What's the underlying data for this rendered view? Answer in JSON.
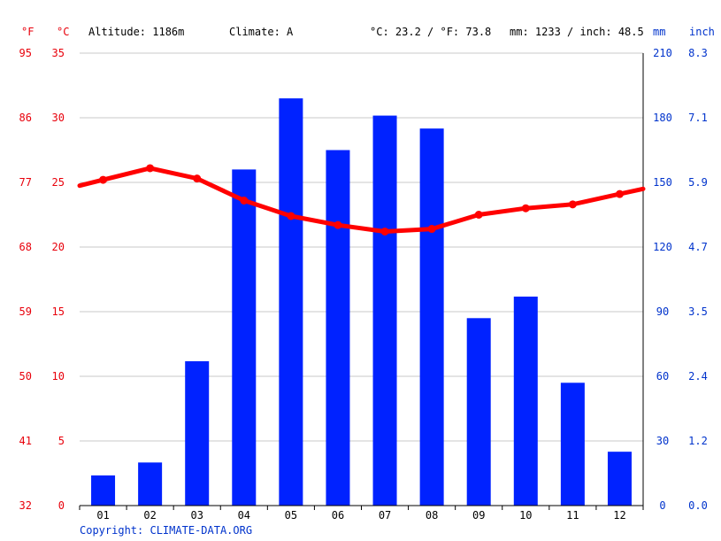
{
  "header": {
    "unit_f": "°F",
    "unit_c": "°C",
    "altitude": "Altitude: 1186m",
    "climate": "Climate: A",
    "temp_summary": "°C: 23.2 / °F: 73.8",
    "precip_summary": "mm: 1233 / inch: 48.5",
    "unit_mm": "mm",
    "unit_inch": "inch"
  },
  "copyright": "Copyright: CLIMATE-DATA.ORG",
  "colors": {
    "temp": "#ff0000",
    "precip": "#0022ff",
    "axis_red": "#e8000b",
    "axis_blue": "#0033cc",
    "grid": "#c8c8c8"
  },
  "chart_data": {
    "type": "bar",
    "categories": [
      "01",
      "02",
      "03",
      "04",
      "05",
      "06",
      "07",
      "08",
      "09",
      "10",
      "11",
      "12"
    ],
    "series": [
      {
        "kind": "bar",
        "axis": "precip_mm",
        "values": [
          14,
          20,
          67,
          156,
          189,
          165,
          181,
          175,
          87,
          97,
          57,
          25
        ]
      },
      {
        "kind": "line",
        "axis": "temp_c",
        "values": [
          25.2,
          26.1,
          25.3,
          23.6,
          22.4,
          21.7,
          21.2,
          21.4,
          22.5,
          23.0,
          23.3,
          24.1
        ]
      }
    ],
    "axes": {
      "temp_c": {
        "range": [
          0,
          35
        ],
        "ticks": [
          "0",
          "5",
          "10",
          "15",
          "20",
          "25",
          "30",
          "35"
        ]
      },
      "temp_f": {
        "ticks": [
          "32",
          "41",
          "50",
          "59",
          "68",
          "77",
          "86",
          "95"
        ]
      },
      "precip_mm": {
        "range": [
          0,
          210
        ],
        "ticks": [
          "0",
          "30",
          "60",
          "90",
          "120",
          "150",
          "180",
          "210"
        ]
      },
      "precip_inch": {
        "ticks": [
          "0.0",
          "1.2",
          "2.4",
          "3.5",
          "4.7",
          "5.9",
          "7.1",
          "8.3"
        ]
      }
    },
    "grid": true
  }
}
